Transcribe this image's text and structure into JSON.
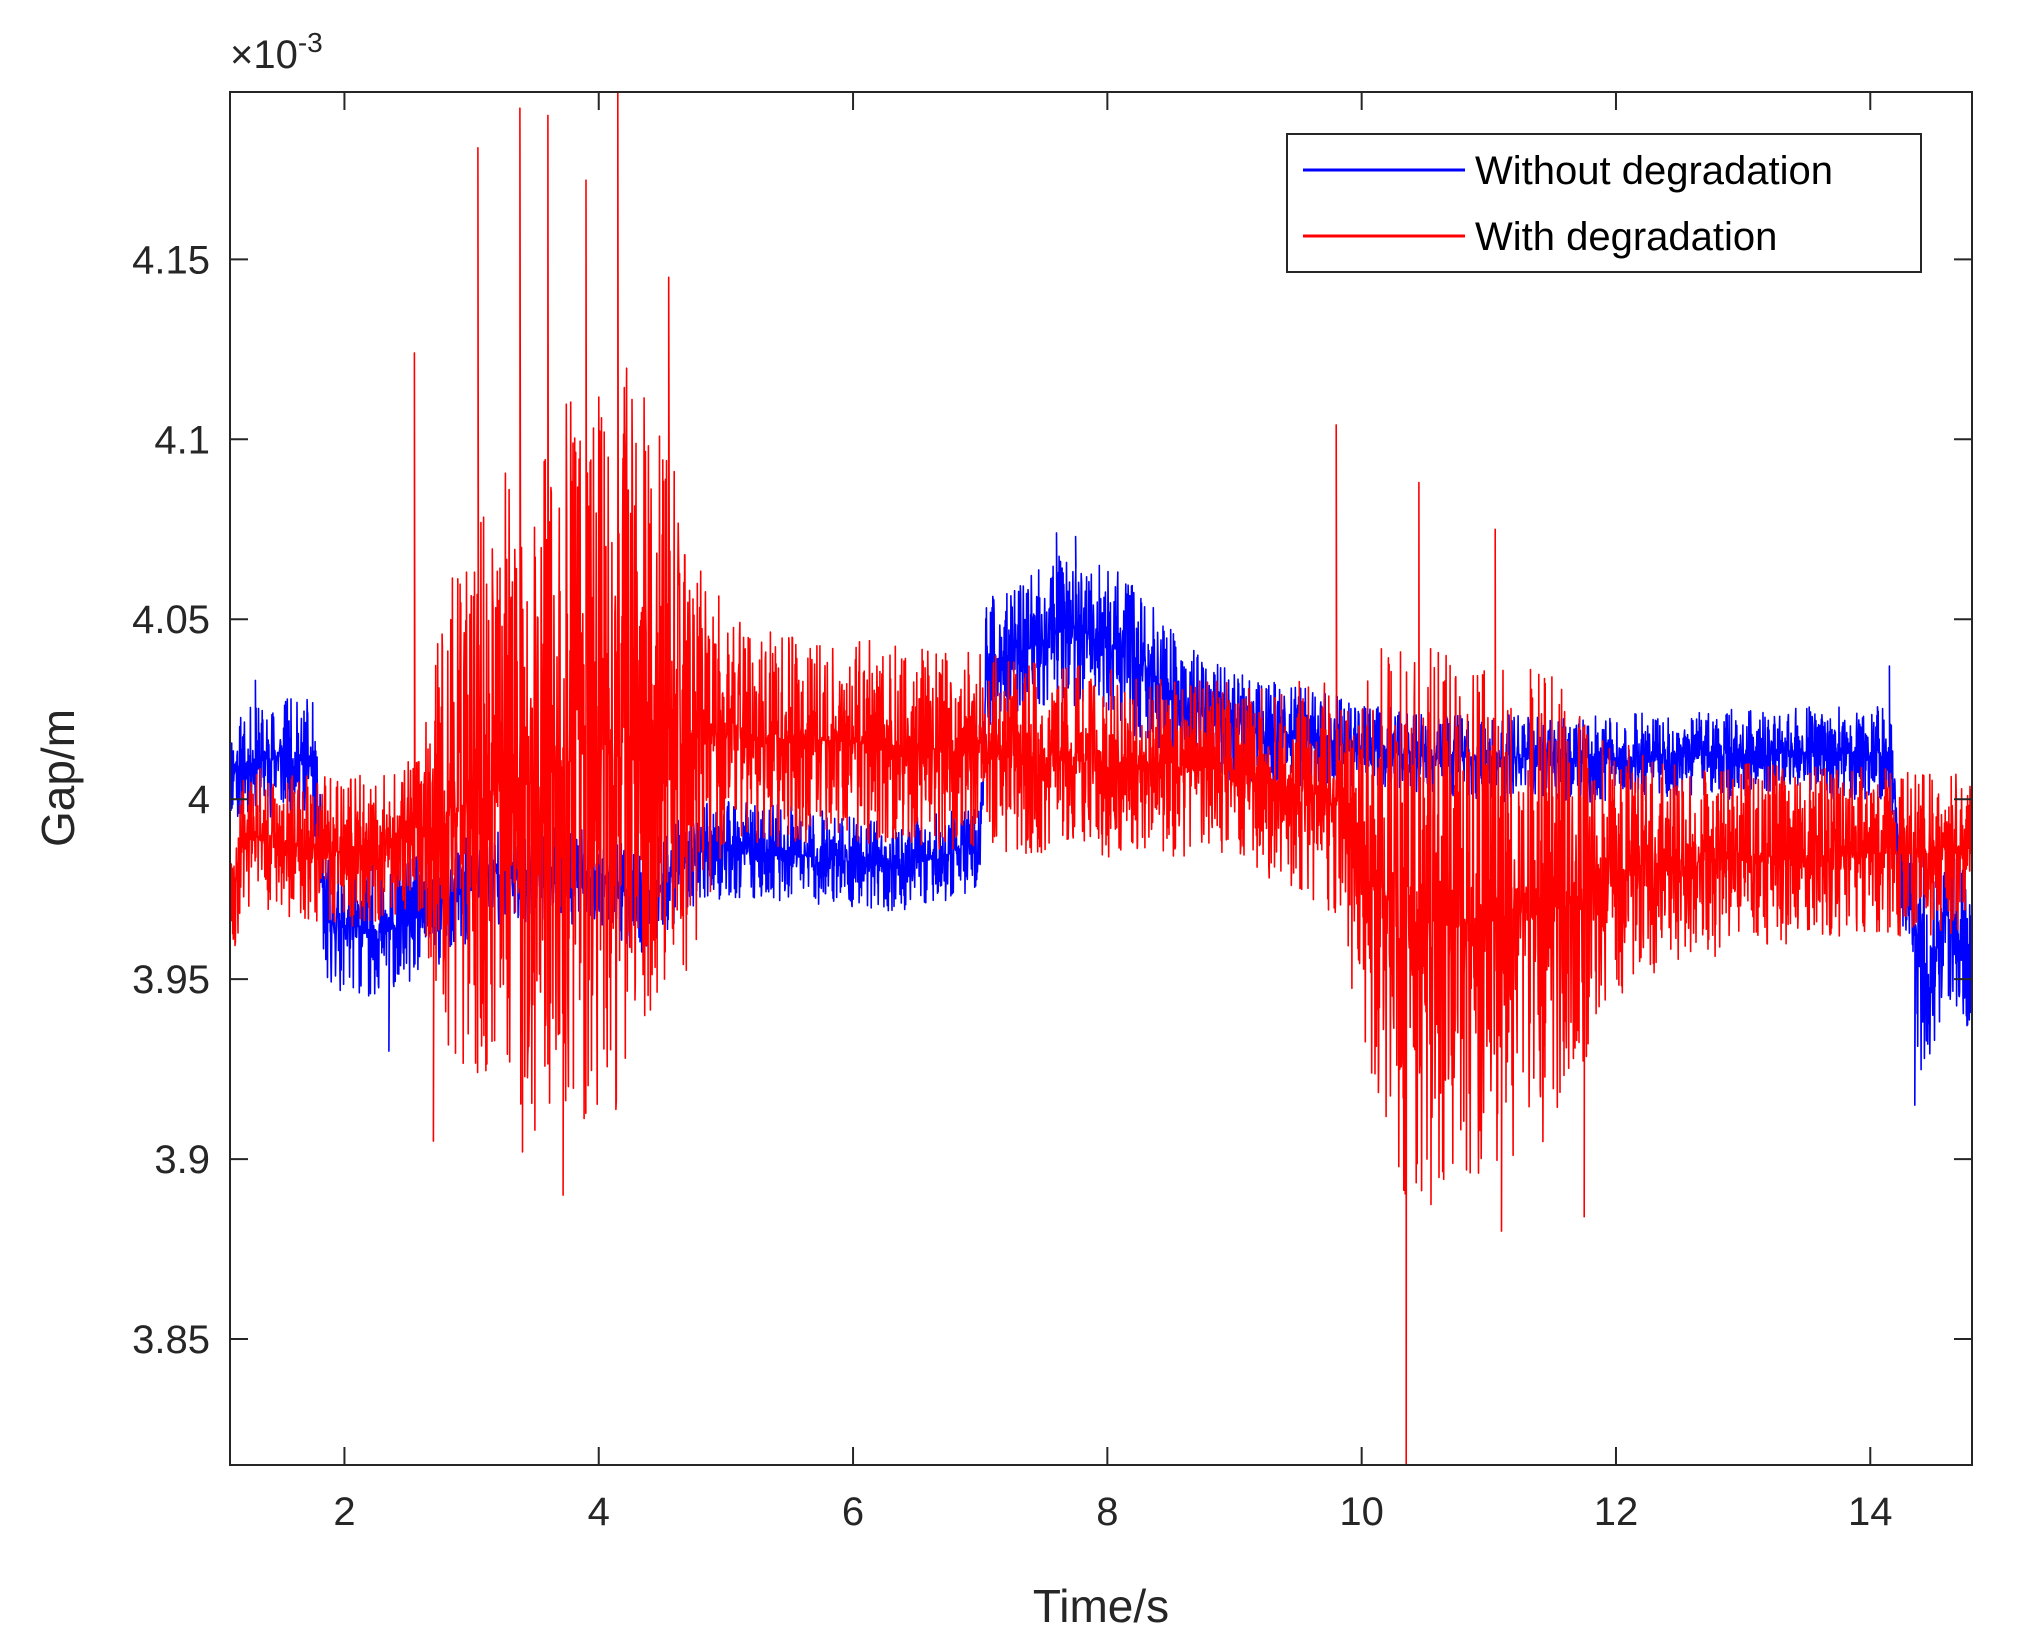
{
  "chart_data": {
    "type": "line",
    "title": "",
    "xlabel": "Time/s",
    "ylabel": "Gap/m",
    "xlim": [
      1.1,
      14.8
    ],
    "ylim": [
      3.815,
      4.1965
    ],
    "y_exponent_label": "×10",
    "y_exponent_power": "-3",
    "x_ticks": [
      2,
      4,
      6,
      8,
      10,
      12,
      14
    ],
    "x_tick_labels": [
      "2",
      "4",
      "6",
      "8",
      "10",
      "12",
      "14"
    ],
    "y_ticks": [
      3.85,
      3.9,
      3.95,
      4.0,
      4.05,
      4.1,
      4.15
    ],
    "y_tick_labels": [
      "3.85",
      "3.9",
      "3.95",
      "4",
      "4.05",
      "4.1",
      "4.15"
    ],
    "grid": false,
    "legend_position": "top-right",
    "legend": [
      "Without degradation",
      "With degradation"
    ],
    "series": [
      {
        "name": "Without degradation",
        "color": "#0000ff",
        "baseline": {
          "x": [
            1.1,
            1.45,
            1.75,
            1.85,
            2.3,
            2.65,
            3.2,
            4.1,
            4.3,
            4.8,
            5.5,
            6.3,
            7.0,
            7.05,
            7.4,
            7.7,
            8.0,
            8.3,
            8.6,
            9.0,
            9.8,
            10.5,
            11.5,
            12.5,
            13.5,
            14.15,
            14.25,
            14.45,
            14.6,
            14.8
          ],
          "y": [
            4.008,
            4.012,
            4.01,
            3.966,
            3.963,
            3.968,
            3.98,
            3.978,
            3.97,
            3.986,
            3.985,
            3.981,
            3.986,
            4.038,
            4.042,
            4.048,
            4.044,
            4.036,
            4.026,
            4.02,
            4.016,
            4.012,
            4.011,
            4.012,
            4.013,
            4.013,
            3.98,
            3.95,
            3.968,
            3.955
          ]
        },
        "envelope": {
          "x": [
            1.1,
            2.0,
            2.7,
            3.5,
            4.5,
            5.5,
            7.0,
            7.05,
            8.0,
            9.0,
            10.0,
            12.0,
            14.2,
            14.4,
            14.8
          ],
          "y": [
            0.014,
            0.017,
            0.016,
            0.012,
            0.013,
            0.012,
            0.011,
            0.018,
            0.02,
            0.014,
            0.011,
            0.011,
            0.012,
            0.03,
            0.018
          ]
        },
        "spikes": [
          {
            "x": 1.3,
            "y": 4.033
          },
          {
            "x": 2.35,
            "y": 3.93
          },
          {
            "x": 7.6,
            "y": 4.074
          },
          {
            "x": 7.75,
            "y": 4.073
          },
          {
            "x": 14.15,
            "y": 4.037
          },
          {
            "x": 14.35,
            "y": 3.915
          }
        ]
      },
      {
        "name": "With degradation",
        "color": "#ff0000",
        "baseline": {
          "x": [
            1.1,
            1.2,
            2.0,
            2.6,
            3.0,
            3.5,
            4.0,
            4.5,
            5.0,
            6.0,
            7.0,
            8.0,
            9.0,
            9.8,
            10.3,
            10.8,
            11.5,
            12.0,
            13.0,
            14.0,
            14.8
          ],
          "y": [
            3.97,
            3.99,
            3.985,
            3.99,
            4.0,
            4.005,
            4.015,
            4.02,
            4.018,
            4.016,
            4.013,
            4.01,
            4.008,
            4.0,
            3.965,
            3.965,
            3.97,
            3.98,
            3.984,
            3.985,
            3.985
          ]
        },
        "envelope": {
          "x": [
            1.1,
            2.6,
            2.8,
            3.5,
            4.2,
            4.6,
            5.0,
            6.0,
            7.0,
            8.0,
            9.0,
            9.8,
            10.3,
            10.8,
            11.5,
            11.9,
            12.5,
            14.0,
            14.8
          ],
          "y": [
            0.018,
            0.02,
            0.06,
            0.09,
            0.095,
            0.07,
            0.03,
            0.026,
            0.025,
            0.024,
            0.022,
            0.03,
            0.075,
            0.068,
            0.06,
            0.035,
            0.025,
            0.022,
            0.02
          ]
        },
        "spikes": [
          {
            "x": 2.55,
            "y": 4.124
          },
          {
            "x": 2.7,
            "y": 3.905
          },
          {
            "x": 3.05,
            "y": 4.181
          },
          {
            "x": 3.3,
            "y": 3.927
          },
          {
            "x": 3.38,
            "y": 4.192
          },
          {
            "x": 3.4,
            "y": 3.902
          },
          {
            "x": 3.6,
            "y": 4.19
          },
          {
            "x": 3.72,
            "y": 3.89
          },
          {
            "x": 3.9,
            "y": 4.172
          },
          {
            "x": 4.15,
            "y": 4.197
          },
          {
            "x": 4.55,
            "y": 4.145
          },
          {
            "x": 9.8,
            "y": 4.104
          },
          {
            "x": 10.35,
            "y": 3.815
          },
          {
            "x": 10.45,
            "y": 4.088
          },
          {
            "x": 11.05,
            "y": 4.075
          },
          {
            "x": 11.1,
            "y": 3.88
          },
          {
            "x": 11.75,
            "y": 3.884
          }
        ]
      }
    ]
  }
}
